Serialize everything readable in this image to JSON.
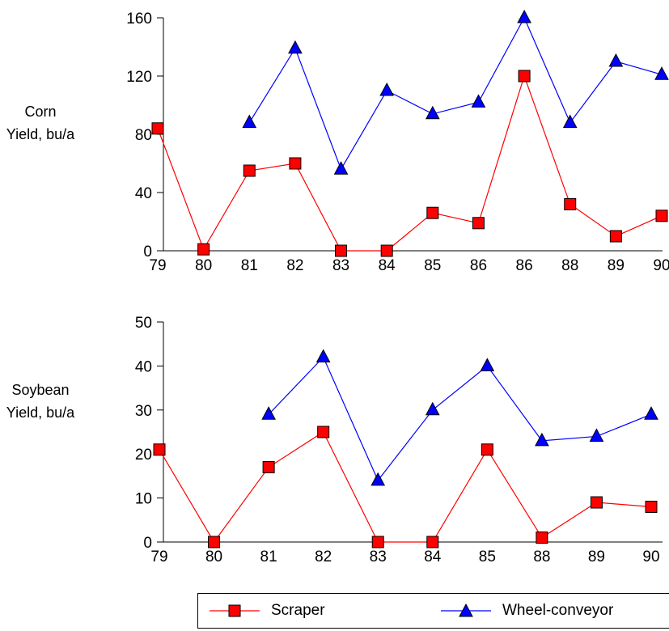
{
  "colors": {
    "scraper": "#ff0000",
    "wheel": "#0000ff",
    "axis": "#000000"
  },
  "legend": {
    "placement": "bottom-right",
    "items": [
      {
        "label": "Scraper",
        "color": "#ff0000",
        "marker": "square"
      },
      {
        "label": "Wheel-conveyor",
        "color": "#0000ff",
        "marker": "triangle"
      }
    ]
  },
  "chart_data": [
    {
      "type": "line",
      "ylabel_lines": [
        "Corn",
        "Yield, bu/a"
      ],
      "categories": [
        "79",
        "80",
        "81",
        "82",
        "83",
        "84",
        "85",
        "86",
        "86",
        "88",
        "89",
        "90"
      ],
      "yticks": [
        "0",
        "40",
        "80",
        "120",
        "160"
      ],
      "ylim": [
        0,
        160
      ],
      "grid": false,
      "series": [
        {
          "name": "Scraper",
          "values": [
            84,
            1,
            55,
            60,
            0,
            0,
            26,
            19,
            120,
            32,
            10,
            24
          ]
        },
        {
          "name": "Wheel-conveyor",
          "values": [
            null,
            null,
            88,
            139,
            56,
            110,
            94,
            102,
            160,
            88,
            130,
            121
          ]
        }
      ]
    },
    {
      "type": "line",
      "ylabel_lines": [
        "Soybean",
        "Yield, bu/a"
      ],
      "categories": [
        "79",
        "80",
        "81",
        "82",
        "83",
        "84",
        "85",
        "88",
        "89",
        "90"
      ],
      "yticks": [
        "0",
        "10",
        "20",
        "30",
        "40",
        "50"
      ],
      "ylim": [
        0,
        50
      ],
      "grid": false,
      "series": [
        {
          "name": "Scraper",
          "values": [
            21,
            0,
            17,
            25,
            0,
            0,
            21,
            1,
            9,
            8
          ]
        },
        {
          "name": "Wheel-conveyor",
          "values": [
            null,
            null,
            29,
            42,
            14,
            30,
            40,
            23,
            24,
            29
          ]
        }
      ]
    }
  ]
}
